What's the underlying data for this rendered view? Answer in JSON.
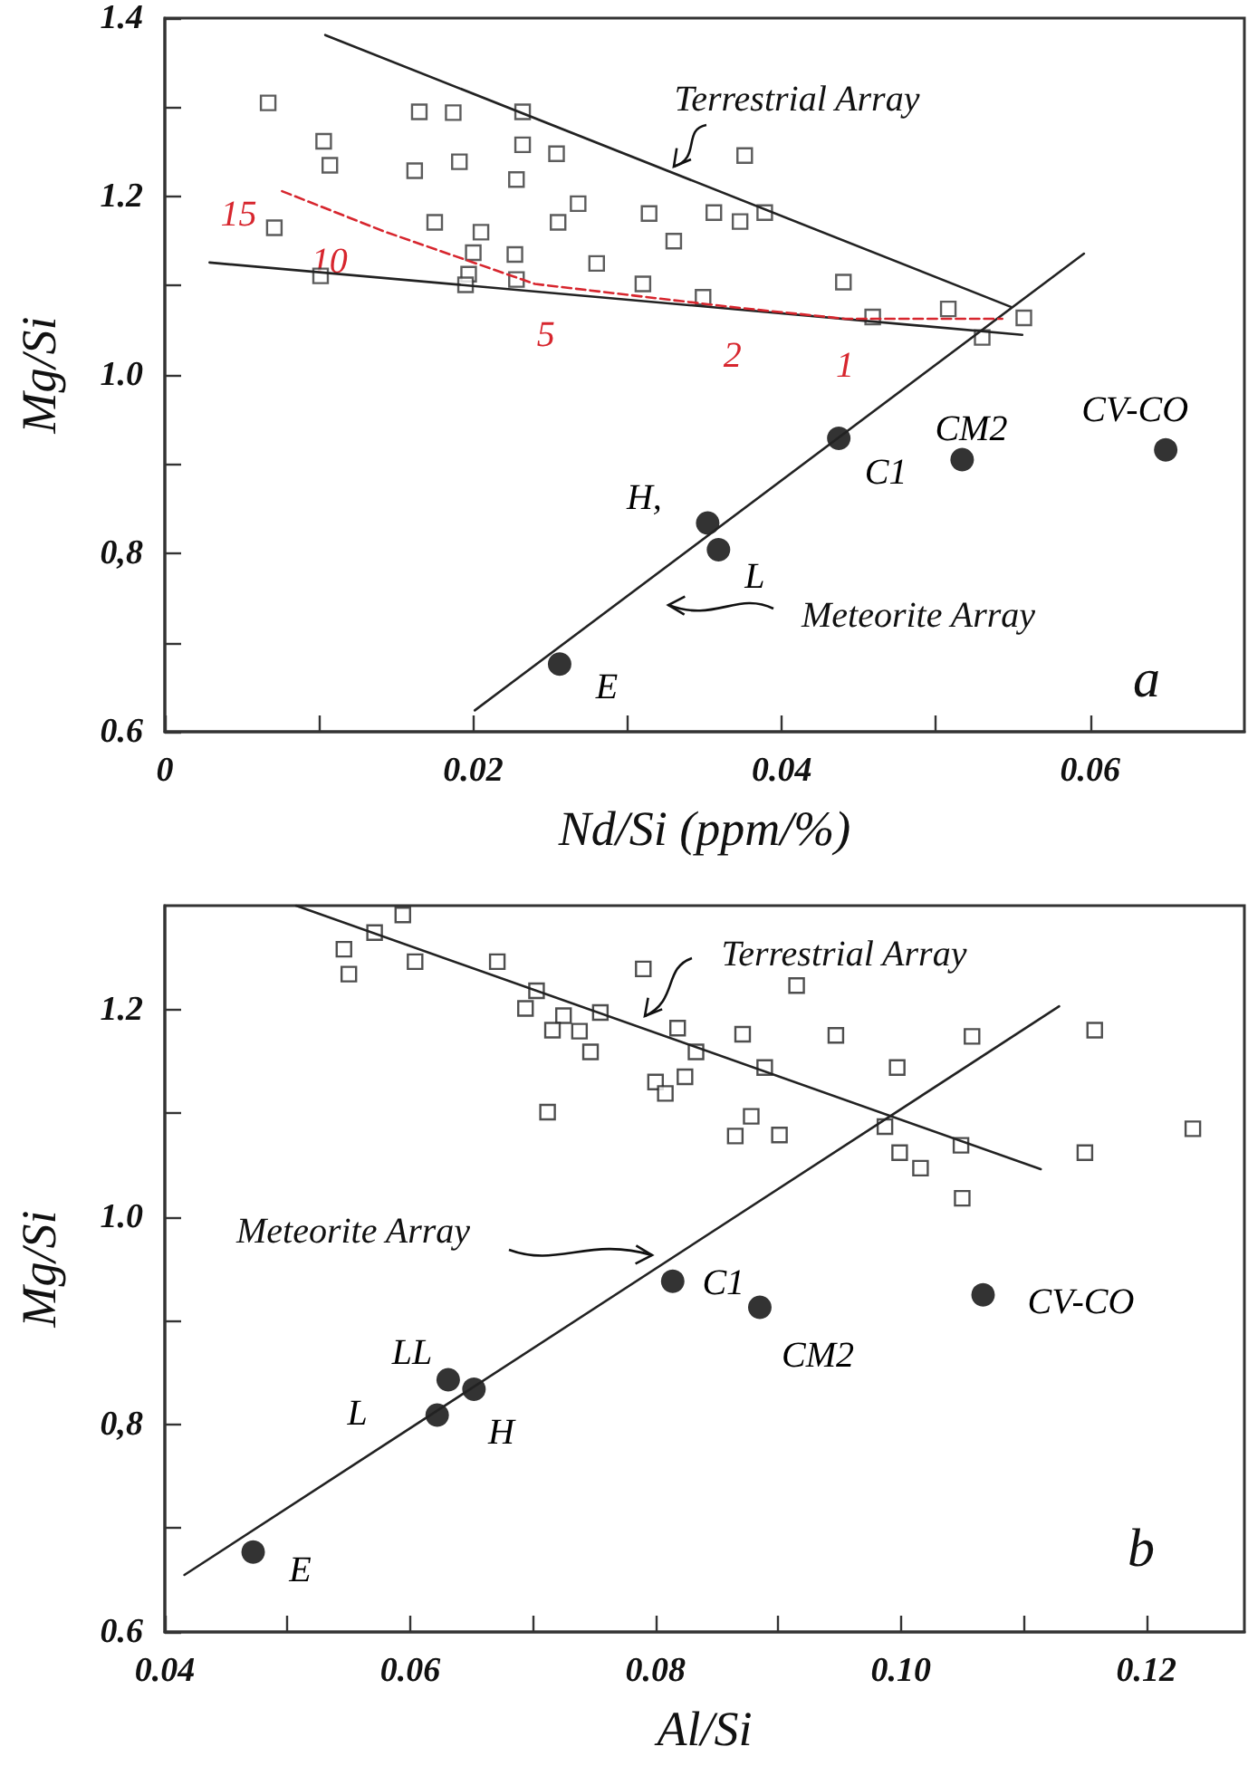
{
  "chart_data": [
    {
      "type": "scatter",
      "xlabel": "Nd/Si (ppm/%)",
      "ylabel": "Mg/Si",
      "xlim": [
        0,
        0.07
      ],
      "ylim": [
        0.6,
        1.4
      ],
      "xticks": [
        0,
        {
          "value": 0.01,
          "label": null
        },
        0.02,
        {
          "value": 0.03,
          "label": null
        },
        0.04,
        {
          "value": 0.05,
          "label": null
        },
        0.06
      ],
      "yticks": [
        0.6,
        {
          "value": 0.7,
          "label": null
        },
        {
          "value": 0.8,
          "label": "0,8"
        },
        {
          "value": 0.9,
          "label": null
        },
        {
          "value": 1,
          "label": "1.0"
        },
        {
          "value": 1.1,
          "label": null
        },
        1.2,
        {
          "value": 1.3,
          "label": null
        },
        1.4
      ],
      "grid": false,
      "series": [
        {
          "type": "scatter",
          "marker": "square",
          "color": "#333333",
          "x": [
            0.0067,
            0.0103,
            0.0107,
            0.0071,
            0.0101,
            0.0165,
            0.0187,
            0.0232,
            0.0232,
            0.0254,
            0.0162,
            0.0191,
            0.0228,
            0.0268,
            0.0175,
            0.0205,
            0.0255,
            0.02,
            0.0227,
            0.0197,
            0.0195,
            0.0228,
            0.028,
            0.0314,
            0.033,
            0.031,
            0.0349,
            0.0356,
            0.0376,
            0.0389,
            0.0373,
            0.044,
            0.0459,
            0.0508,
            0.0557,
            0.053
          ],
          "values": [
            1.305,
            1.262,
            1.235,
            1.165,
            1.111,
            1.295,
            1.294,
            1.295,
            1.258,
            1.248,
            1.229,
            1.239,
            1.219,
            1.192,
            1.171,
            1.16,
            1.171,
            1.137,
            1.135,
            1.113,
            1.101,
            1.107,
            1.125,
            1.181,
            1.15,
            1.102,
            1.087,
            1.182,
            1.246,
            1.182,
            1.172,
            1.104,
            1.065,
            1.074,
            1.064,
            1.042
          ]
        },
        {
          "type": "scatter",
          "marker": "circle",
          "color": "#000000",
          "x": [
            0.0256,
            0.0352,
            0.0359,
            0.0437,
            0.0517,
            0.0649
          ],
          "values": [
            0.676,
            0.834,
            0.804,
            0.929,
            0.905,
            0.916
          ]
        },
        {
          "type": "line",
          "marker": "none",
          "color": "#222222",
          "x": [
            0.0104,
            0.0549
          ],
          "values": [
            1.381,
            1.076
          ]
        },
        {
          "type": "line",
          "marker": "none",
          "color": "#222222",
          "x": [
            0.0029,
            0.0556
          ],
          "values": [
            1.126,
            1.045
          ]
        },
        {
          "type": "line",
          "marker": "none",
          "color": "#222222",
          "x": [
            0.0201,
            0.0596
          ],
          "values": [
            0.624,
            1.136
          ]
        },
        {
          "type": "line",
          "marker": "none",
          "line_style": "dashed",
          "color": "#d7262e",
          "x": [
            0.0076,
            0.0142,
            0.024,
            0.0368,
            0.0441,
            0.0543
          ],
          "values": [
            1.206,
            1.161,
            1.102,
            1.076,
            1.063,
            1.063
          ]
        }
      ],
      "annotations": [
        "Terrestrial Array",
        "Meteorite Array",
        {
          "text": "H,",
          "x": 0.0352,
          "y": 0.834
        },
        {
          "text": "L",
          "x": 0.0359,
          "y": 0.804
        },
        {
          "text": "C1",
          "x": 0.0437,
          "y": 0.929
        },
        {
          "text": "CM2",
          "x": 0.0517,
          "y": 0.905
        },
        {
          "text": "CV-CO",
          "x": 0.0649,
          "y": 0.916
        },
        {
          "text": "E",
          "x": 0.0256,
          "y": 0.676
        },
        {
          "text": "15",
          "x": 0.0076,
          "y": 1.206
        },
        {
          "text": "10",
          "x": 0.0142,
          "y": 1.161
        },
        {
          "text": "5",
          "x": 0.024,
          "y": 1.102
        },
        {
          "text": "2",
          "x": 0.0368,
          "y": 1.076
        },
        {
          "text": "1",
          "x": 0.0441,
          "y": 1.063
        },
        "a"
      ]
    },
    {
      "type": "scatter",
      "xlabel": "Al/Si",
      "ylabel": "Mg/Si",
      "xlim": [
        0.04,
        0.128
      ],
      "ylim": [
        0.6,
        1.3
      ],
      "xticks": [
        0.04,
        {
          "value": 0.05,
          "label": null
        },
        0.06,
        {
          "value": 0.07,
          "label": null
        },
        0.08,
        {
          "value": 0.09,
          "label": null
        },
        {
          "value": 0.1,
          "label": "0.10"
        },
        {
          "value": 0.11,
          "label": null
        },
        0.12
      ],
      "yticks": [
        0.6,
        {
          "value": 0.7,
          "label": null
        },
        {
          "value": 0.8,
          "label": "0,8"
        },
        {
          "value": 0.9,
          "label": null
        },
        {
          "value": 1,
          "label": "1.0"
        },
        {
          "value": 1.1,
          "label": null
        },
        1.2
      ],
      "grid": false,
      "series": [
        {
          "type": "scatter",
          "marker": "square",
          "color": "#222222",
          "x": [
            0.0546,
            0.055,
            0.0571,
            0.0594,
            0.0604,
            0.0671,
            0.0703,
            0.0694,
            0.0725,
            0.0716,
            0.0738,
            0.0747,
            0.0755,
            0.079,
            0.0818,
            0.0833,
            0.0824,
            0.08,
            0.0808,
            0.0712,
            0.0915,
            0.0871,
            0.0947,
            0.1058,
            0.1158,
            0.0889,
            0.0997,
            0.0878,
            0.0865,
            0.0901,
            0.0987,
            0.0999,
            0.1016,
            0.1049,
            0.115,
            0.1238,
            0.105
          ],
          "values": [
            1.258,
            1.234,
            1.274,
            1.291,
            1.246,
            1.246,
            1.218,
            1.201,
            1.194,
            1.18,
            1.179,
            1.159,
            1.197,
            1.239,
            1.182,
            1.159,
            1.135,
            1.13,
            1.119,
            1.101,
            1.223,
            1.176,
            1.175,
            1.174,
            1.18,
            1.144,
            1.144,
            1.097,
            1.078,
            1.079,
            1.087,
            1.062,
            1.047,
            1.069,
            1.062,
            1.085,
            1.018
          ]
        },
        {
          "type": "scatter",
          "marker": "circle",
          "color": "#000000",
          "x": [
            0.0472,
            0.0622,
            0.0631,
            0.0652,
            0.0814,
            0.0885,
            0.1067
          ],
          "values": [
            0.677,
            0.809,
            0.843,
            0.834,
            0.938,
            0.913,
            0.925
          ]
        },
        {
          "type": "line",
          "marker": "none",
          "color": "#222222",
          "x": [
            0.0507,
            0.1114
          ],
          "values": [
            1.3,
            1.046
          ]
        },
        {
          "type": "line",
          "marker": "none",
          "color": "#222222",
          "x": [
            0.0416,
            0.1129
          ],
          "values": [
            0.655,
            1.203
          ]
        }
      ],
      "annotations": [
        "Terrestrial Array",
        "Meteorite Array",
        {
          "text": "E",
          "x": 0.0472,
          "y": 0.677
        },
        {
          "text": "L",
          "x": 0.0622,
          "y": 0.809
        },
        {
          "text": "LL",
          "x": 0.0631,
          "y": 0.843
        },
        {
          "text": "H",
          "x": 0.0652,
          "y": 0.834
        },
        {
          "text": "C1",
          "x": 0.0814,
          "y": 0.938
        },
        {
          "text": "CM2",
          "x": 0.0885,
          "y": 0.913
        },
        {
          "text": "CV-CO",
          "x": 0.1067,
          "y": 0.925
        },
        "b"
      ]
    }
  ]
}
